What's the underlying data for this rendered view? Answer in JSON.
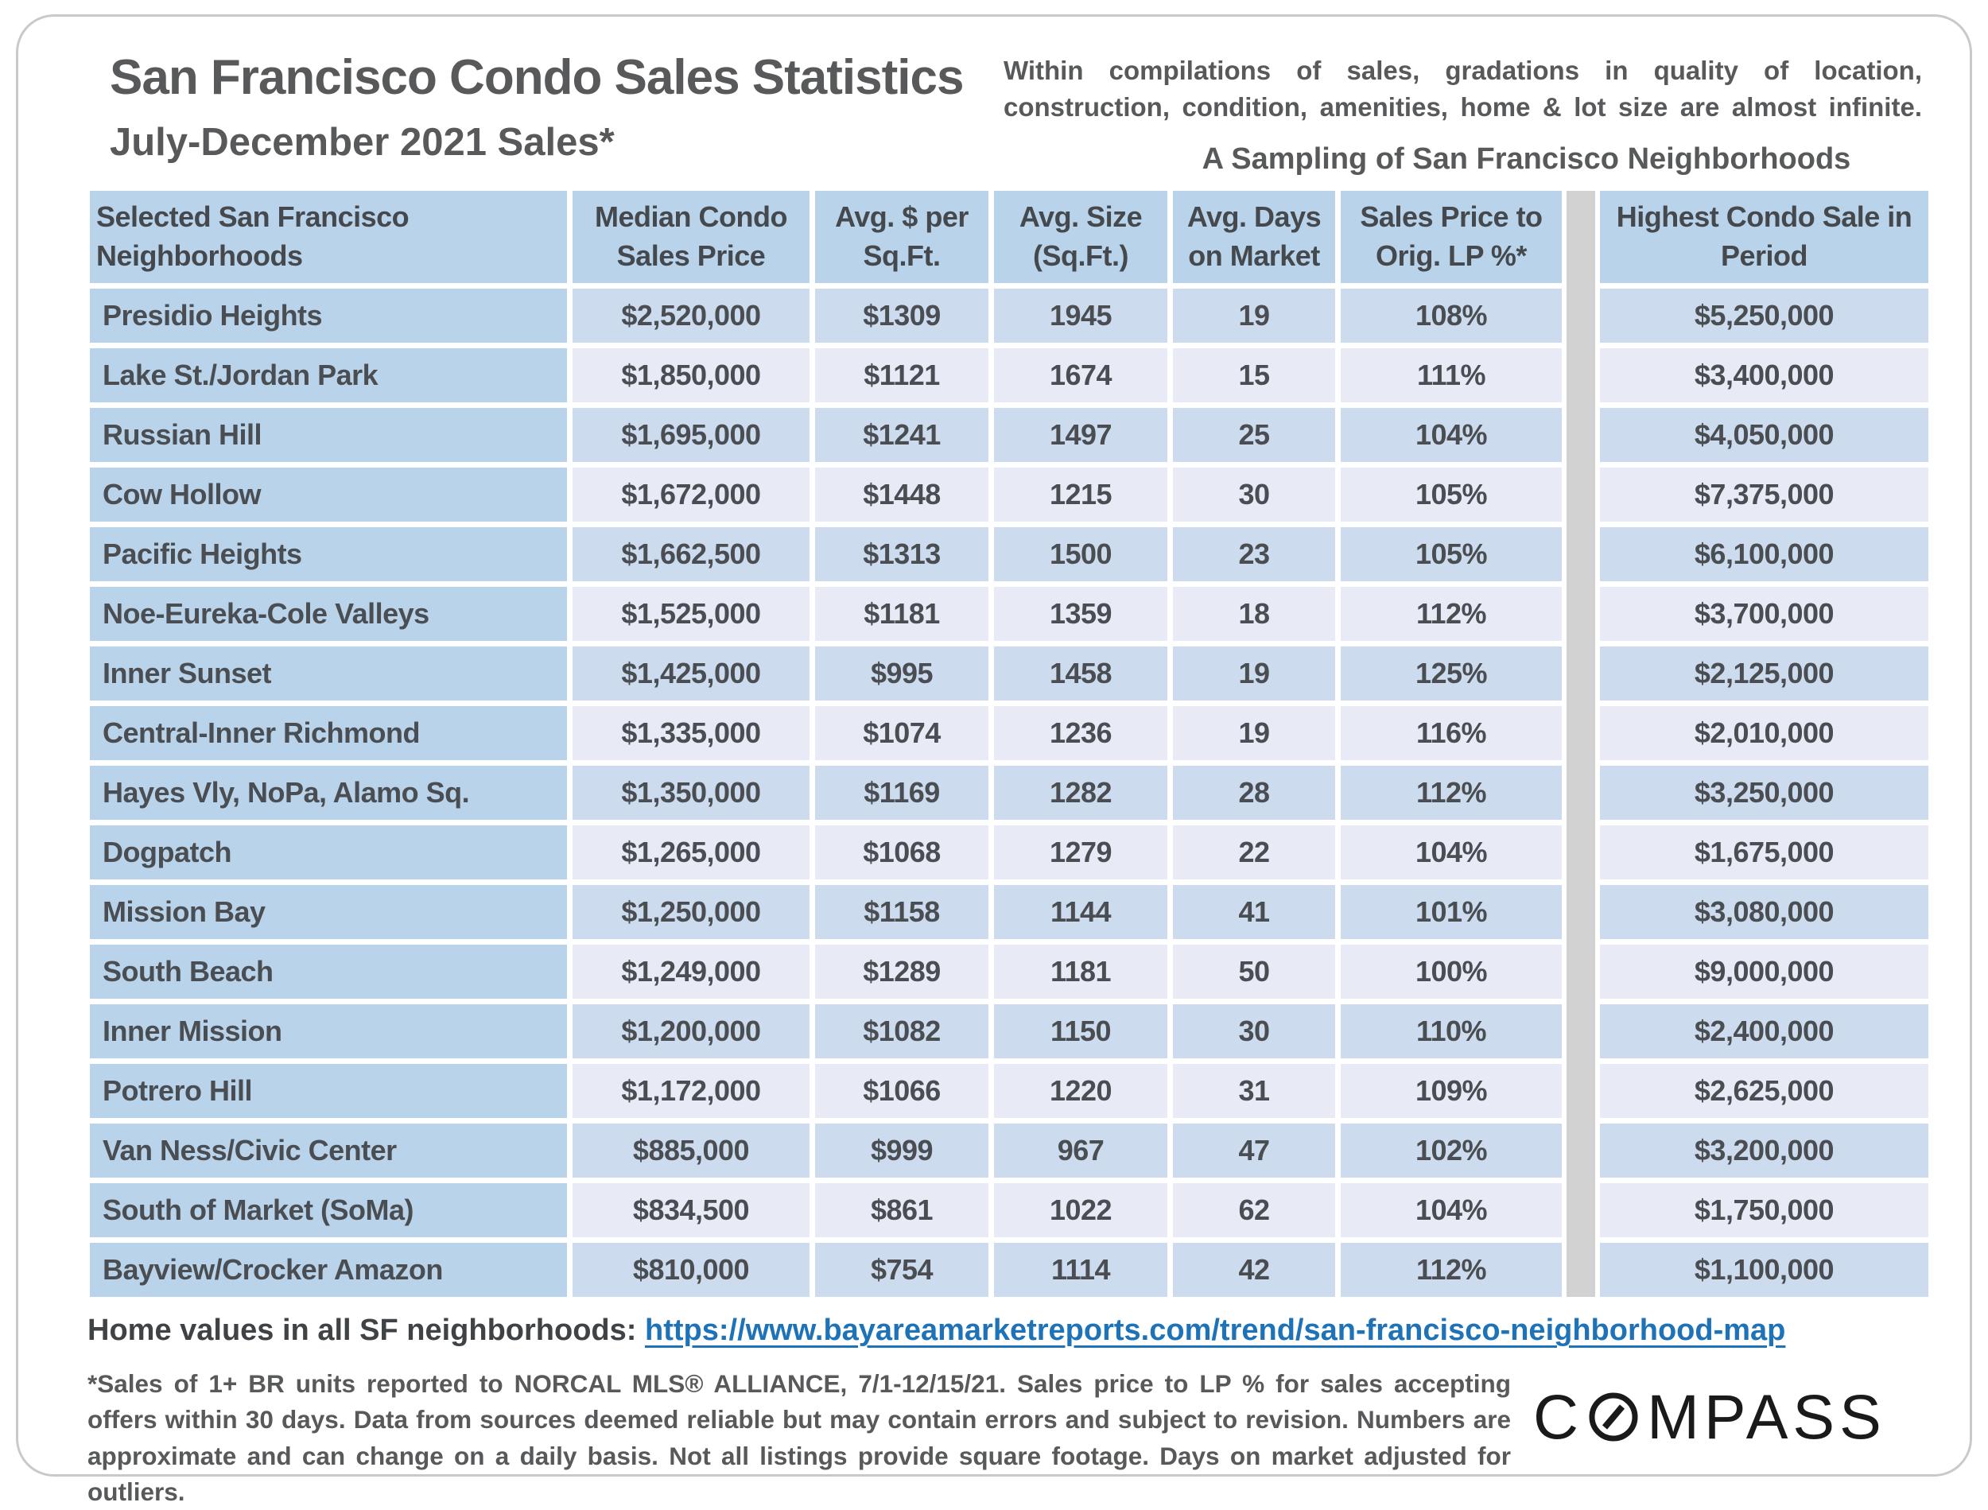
{
  "header": {
    "title": "San Francisco Condo Sales Statistics",
    "subtitle": "July-December 2021 Sales*",
    "note": "Within compilations of sales, gradations in quality of location, construction, condition, amenities, home & lot size are almost infinite.",
    "sampling_caption": "A Sampling of San Francisco Neighborhoods"
  },
  "chart_data": {
    "type": "table",
    "title": "San Francisco Condo Sales Statistics, July-December 2021 Sales*",
    "columns": [
      "Selected San Francisco Neighborhoods",
      "Median Condo Sales Price",
      "Avg. $ per Sq.Ft.",
      "Avg. Size (Sq.Ft.)",
      "Avg. Days on Market",
      "Sales Price to Orig. LP %*",
      "Highest Condo Sale in Period"
    ],
    "rows": [
      {
        "name": "Presidio Heights",
        "median": "$2,520,000",
        "ppsf": "$1309",
        "size": "1945",
        "days": "19",
        "lp": "108%",
        "highest": "$5,250,000"
      },
      {
        "name": "Lake St./Jordan Park",
        "median": "$1,850,000",
        "ppsf": "$1121",
        "size": "1674",
        "days": "15",
        "lp": "111%",
        "highest": "$3,400,000"
      },
      {
        "name": "Russian Hill",
        "median": "$1,695,000",
        "ppsf": "$1241",
        "size": "1497",
        "days": "25",
        "lp": "104%",
        "highest": "$4,050,000"
      },
      {
        "name": "Cow Hollow",
        "median": "$1,672,000",
        "ppsf": "$1448",
        "size": "1215",
        "days": "30",
        "lp": "105%",
        "highest": "$7,375,000"
      },
      {
        "name": "Pacific Heights",
        "median": "$1,662,500",
        "ppsf": "$1313",
        "size": "1500",
        "days": "23",
        "lp": "105%",
        "highest": "$6,100,000"
      },
      {
        "name": "Noe-Eureka-Cole Valleys",
        "median": "$1,525,000",
        "ppsf": "$1181",
        "size": "1359",
        "days": "18",
        "lp": "112%",
        "highest": "$3,700,000"
      },
      {
        "name": "Inner Sunset",
        "median": "$1,425,000",
        "ppsf": "$995",
        "size": "1458",
        "days": "19",
        "lp": "125%",
        "highest": "$2,125,000"
      },
      {
        "name": "Central-Inner Richmond",
        "median": "$1,335,000",
        "ppsf": "$1074",
        "size": "1236",
        "days": "19",
        "lp": "116%",
        "highest": "$2,010,000"
      },
      {
        "name": "Hayes Vly, NoPa, Alamo Sq.",
        "median": "$1,350,000",
        "ppsf": "$1169",
        "size": "1282",
        "days": "28",
        "lp": "112%",
        "highest": "$3,250,000"
      },
      {
        "name": "Dogpatch",
        "median": "$1,265,000",
        "ppsf": "$1068",
        "size": "1279",
        "days": "22",
        "lp": "104%",
        "highest": "$1,675,000"
      },
      {
        "name": "Mission Bay",
        "median": "$1,250,000",
        "ppsf": "$1158",
        "size": "1144",
        "days": "41",
        "lp": "101%",
        "highest": "$3,080,000"
      },
      {
        "name": "South Beach",
        "median": "$1,249,000",
        "ppsf": "$1289",
        "size": "1181",
        "days": "50",
        "lp": "100%",
        "highest": "$9,000,000"
      },
      {
        "name": "Inner Mission",
        "median": "$1,200,000",
        "ppsf": "$1082",
        "size": "1150",
        "days": "30",
        "lp": "110%",
        "highest": "$2,400,000"
      },
      {
        "name": "Potrero Hill",
        "median": "$1,172,000",
        "ppsf": "$1066",
        "size": "1220",
        "days": "31",
        "lp": "109%",
        "highest": "$2,625,000"
      },
      {
        "name": "Van Ness/Civic Center",
        "median": "$885,000",
        "ppsf": "$999",
        "size": "967",
        "days": "47",
        "lp": "102%",
        "highest": "$3,200,000"
      },
      {
        "name": "South of Market (SoMa)",
        "median": "$834,500",
        "ppsf": "$861",
        "size": "1022",
        "days": "62",
        "lp": "104%",
        "highest": "$1,750,000"
      },
      {
        "name": "Bayview/Crocker Amazon",
        "median": "$810,000",
        "ppsf": "$754",
        "size": "1114",
        "days": "42",
        "lp": "112%",
        "highest": "$1,100,000"
      }
    ]
  },
  "table_headers": {
    "neighborhoods": "Selected San Francisco Neighborhoods",
    "median": "Median Condo Sales Price",
    "ppsf": "Avg. $ per Sq.Ft.",
    "size": "Avg. Size (Sq.Ft.)",
    "days": "Avg. Days on Market",
    "lp": "Sales Price to Orig. LP %*",
    "highest": "Highest Condo Sale in Period"
  },
  "footer": {
    "link_label": "Home values in all SF neighborhoods:",
    "link_url": "https://www.bayareamarketreports.com/trend/san-francisco-neighborhood-map",
    "disclaimer": "*Sales of 1+ BR units reported to NORCAL MLS® ALLIANCE, 7/1-12/15/21. Sales price to LP % for sales accepting offers within 30 days. Data from sources deemed reliable but may contain errors and subject to revision. Numbers are approximate and can change on a daily basis. Not all listings provide square footage. Days on market adjusted for outliers.",
    "logo_text": "COMPASS"
  },
  "colors": {
    "header_cell_blue": "#b9d4ea",
    "row_odd_blue": "#ccdcee",
    "row_even_lavender": "#e8ebf5",
    "divider_gray": "#d2d2d2",
    "text_dark_gray": "#58595b",
    "link_blue": "#1e73b8"
  }
}
